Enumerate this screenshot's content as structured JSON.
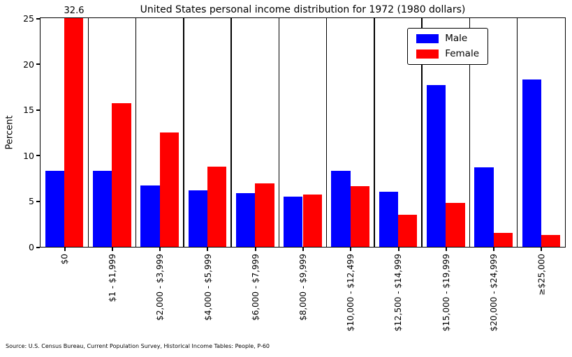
{
  "figure": {
    "annotation": "32.6",
    "source": "Source: U.S. Census Bureau, Current Population Survey, Historical Income Tables: People, P-60"
  },
  "chart_data": {
    "type": "bar",
    "title": "United States personal income distribution for 1972 (1980 dollars)",
    "xlabel": "",
    "ylabel": "Percent",
    "ylim": [
      0,
      25
    ],
    "yticks": [
      0,
      5,
      10,
      15,
      20,
      25
    ],
    "grid": false,
    "legend_position": "upper right",
    "categories": [
      "$0",
      "$1 - $1,999",
      "$2,000 - $3,999",
      "$4,000 - $5,999",
      "$6,000 - $7,999",
      "$8,000 - $9,999",
      "$10,000 - $12,499",
      "$12,500 - $14,999",
      "$15,000 - $19,999",
      "$20,000 - $24,999",
      "≥$25,000"
    ],
    "series": [
      {
        "name": "Male",
        "color": "#0000ff",
        "values": [
          8.3,
          8.3,
          6.7,
          6.2,
          5.9,
          5.5,
          8.3,
          6.0,
          17.7,
          8.7,
          18.3
        ]
      },
      {
        "name": "Female",
        "color": "#ff0000",
        "values": [
          32.6,
          15.7,
          12.5,
          8.8,
          6.9,
          5.7,
          6.6,
          3.5,
          4.8,
          1.5,
          1.3
        ]
      }
    ],
    "annotations": [
      {
        "text": "32.6",
        "category": "$0",
        "series": "Female",
        "note": "bar clipped at top of axis"
      }
    ]
  }
}
